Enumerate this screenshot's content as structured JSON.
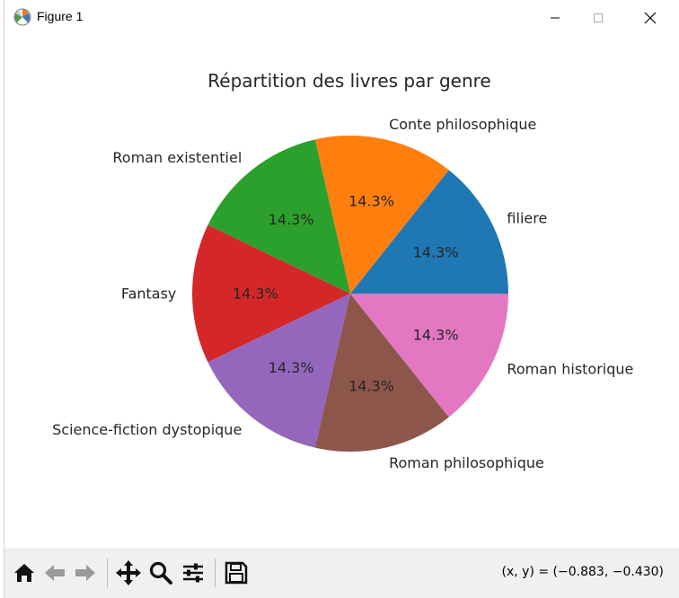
{
  "window": {
    "title": "Figure 1",
    "icon": "matplotlib-icon"
  },
  "chart_data": {
    "type": "pie",
    "title": "Répartition des livres par genre",
    "labels": [
      "filiere",
      "Conte philosophique",
      "Roman existentiel",
      "Fantasy",
      "Science-fiction dystopique",
      "Roman philosophique",
      "Roman historique"
    ],
    "values": [
      1,
      1,
      1,
      1,
      1,
      1,
      1
    ],
    "pct_labels": [
      "14.3%",
      "14.3%",
      "14.3%",
      "14.3%",
      "14.3%",
      "14.3%",
      "14.3%"
    ],
    "colors": [
      "#1f77b4",
      "#ff7f0e",
      "#2ca02c",
      "#d62728",
      "#9467bd",
      "#8c564b",
      "#e377c2"
    ],
    "start_angle_deg": 0,
    "direction": "counterclockwise"
  },
  "toolbar": {
    "tools": [
      "home-icon",
      "back-icon",
      "forward-icon",
      "pan-icon",
      "zoom-icon",
      "configure-subplots-icon",
      "save-icon"
    ],
    "coords": "(x, y) = (−0.883, −0.430)"
  }
}
